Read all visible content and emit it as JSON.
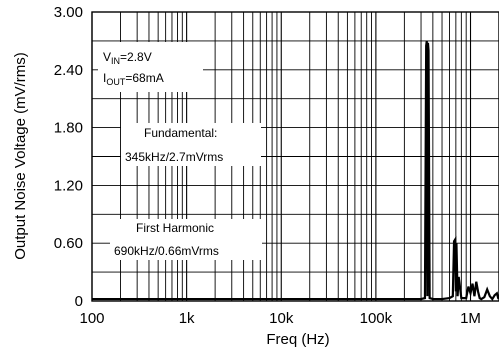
{
  "chart_data": {
    "type": "line",
    "title": "",
    "xlabel": "Freq (Hz)",
    "ylabel": "Output Noise Voltage (mV/rms)",
    "x_scale": "log",
    "xlim": [
      100,
      2000000
    ],
    "ylim": [
      0,
      3.0
    ],
    "x_ticks": [
      100,
      1000,
      10000,
      100000,
      1000000
    ],
    "x_tick_labels": [
      "100",
      "1k",
      "10k",
      "100k",
      "1M"
    ],
    "y_ticks": [
      0,
      0.6,
      1.2,
      1.8,
      2.4,
      3.0
    ],
    "y_tick_labels": [
      "0",
      "0.60",
      "1.20",
      "1.80",
      "2.40",
      "3.00"
    ],
    "grid": true,
    "series": [
      {
        "color": "#000000",
        "x": [
          100,
          1000,
          10000,
          100000,
          300000,
          330000,
          340000,
          345000,
          350000,
          355000,
          360000,
          370000,
          400000,
          500000,
          600000,
          650000,
          670000,
          690000,
          700000,
          710000,
          730000,
          750000,
          800000,
          900000,
          950000,
          1000000,
          1050000,
          1100000,
          1150000,
          1200000,
          1250000,
          1300000,
          1400000,
          1500000,
          1600000,
          1700000,
          1800000,
          1900000,
          2000000
        ],
        "y": [
          0.02,
          0.02,
          0.02,
          0.02,
          0.02,
          0.03,
          2.65,
          2.7,
          0.05,
          2.68,
          2.6,
          0.03,
          0.02,
          0.02,
          0.03,
          0.05,
          0.62,
          0.64,
          0.1,
          0.6,
          0.05,
          0.25,
          0.03,
          0.03,
          0.15,
          0.08,
          0.18,
          0.05,
          0.2,
          0.1,
          0.03,
          0.02,
          0.04,
          0.12,
          0.05,
          0.02,
          0.06,
          0.08,
          0.02
        ]
      }
    ],
    "annotations": [
      {
        "lines": [
          {
            "main": "V",
            "sub": "IN",
            "rest": "=2.8V"
          },
          {
            "main": "I",
            "sub": "OUT",
            "rest": "=68mA"
          }
        ]
      },
      {
        "lines": [
          {
            "main": "Fundamental:",
            "sub": "",
            "rest": ""
          },
          {
            "main": "345kHz/2.7mVrms",
            "sub": "",
            "rest": ""
          }
        ]
      },
      {
        "lines": [
          {
            "main": "First Harmonic",
            "sub": "",
            "rest": ""
          },
          {
            "main": "690kHz/0.66mVrms",
            "sub": "",
            "rest": ""
          }
        ]
      }
    ]
  }
}
